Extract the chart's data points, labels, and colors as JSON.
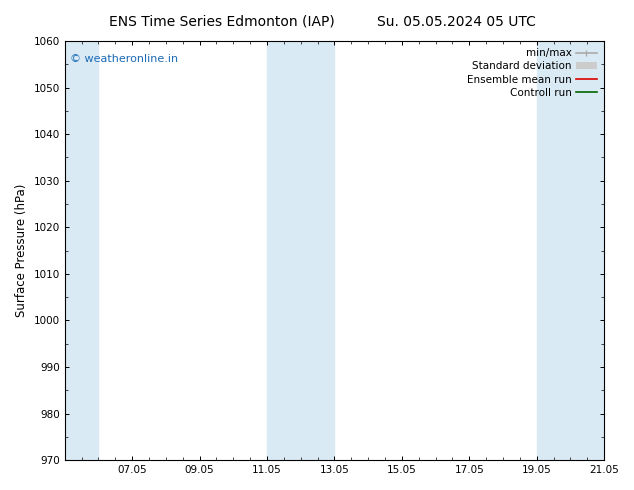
{
  "title_left": "ENS Time Series Edmonton (IAP)",
  "title_right": "Su. 05.05.2024 05 UTC",
  "ylabel": "Surface Pressure (hPa)",
  "ylim": [
    970,
    1060
  ],
  "yticks": [
    970,
    980,
    990,
    1000,
    1010,
    1020,
    1030,
    1040,
    1050,
    1060
  ],
  "xlim": [
    0,
    16
  ],
  "xtick_labels": [
    "07.05",
    "09.05",
    "11.05",
    "13.05",
    "15.05",
    "17.05",
    "19.05",
    "21.05"
  ],
  "xtick_positions": [
    2,
    4,
    6,
    8,
    10,
    12,
    14,
    16
  ],
  "shaded_bands": [
    {
      "x_start": 0.0,
      "x_end": 1.0,
      "color": "#daeaf5"
    },
    {
      "x_start": 6.0,
      "x_end": 8.0,
      "color": "#daeaf5"
    },
    {
      "x_start": 14.0,
      "x_end": 16.0,
      "color": "#daeaf5"
    }
  ],
  "watermark_text": "© weatheronline.in",
  "watermark_color": "#1a6ab5",
  "background_color": "#ffffff",
  "legend_items": [
    {
      "label": "min/max",
      "color": "#aaaaaa",
      "lw": 1.2,
      "style": "solid",
      "type": "errorbar"
    },
    {
      "label": "Standard deviation",
      "color": "#cccccc",
      "lw": 8,
      "style": "solid",
      "type": "thick"
    },
    {
      "label": "Ensemble mean run",
      "color": "#dd0000",
      "lw": 1.2,
      "style": "solid",
      "type": "line"
    },
    {
      "label": "Controll run",
      "color": "#006600",
      "lw": 1.2,
      "style": "solid",
      "type": "line"
    }
  ],
  "title_fontsize": 10,
  "tick_fontsize": 7.5,
  "ylabel_fontsize": 8.5,
  "legend_fontsize": 7.5,
  "figsize": [
    6.34,
    4.9
  ],
  "dpi": 100
}
